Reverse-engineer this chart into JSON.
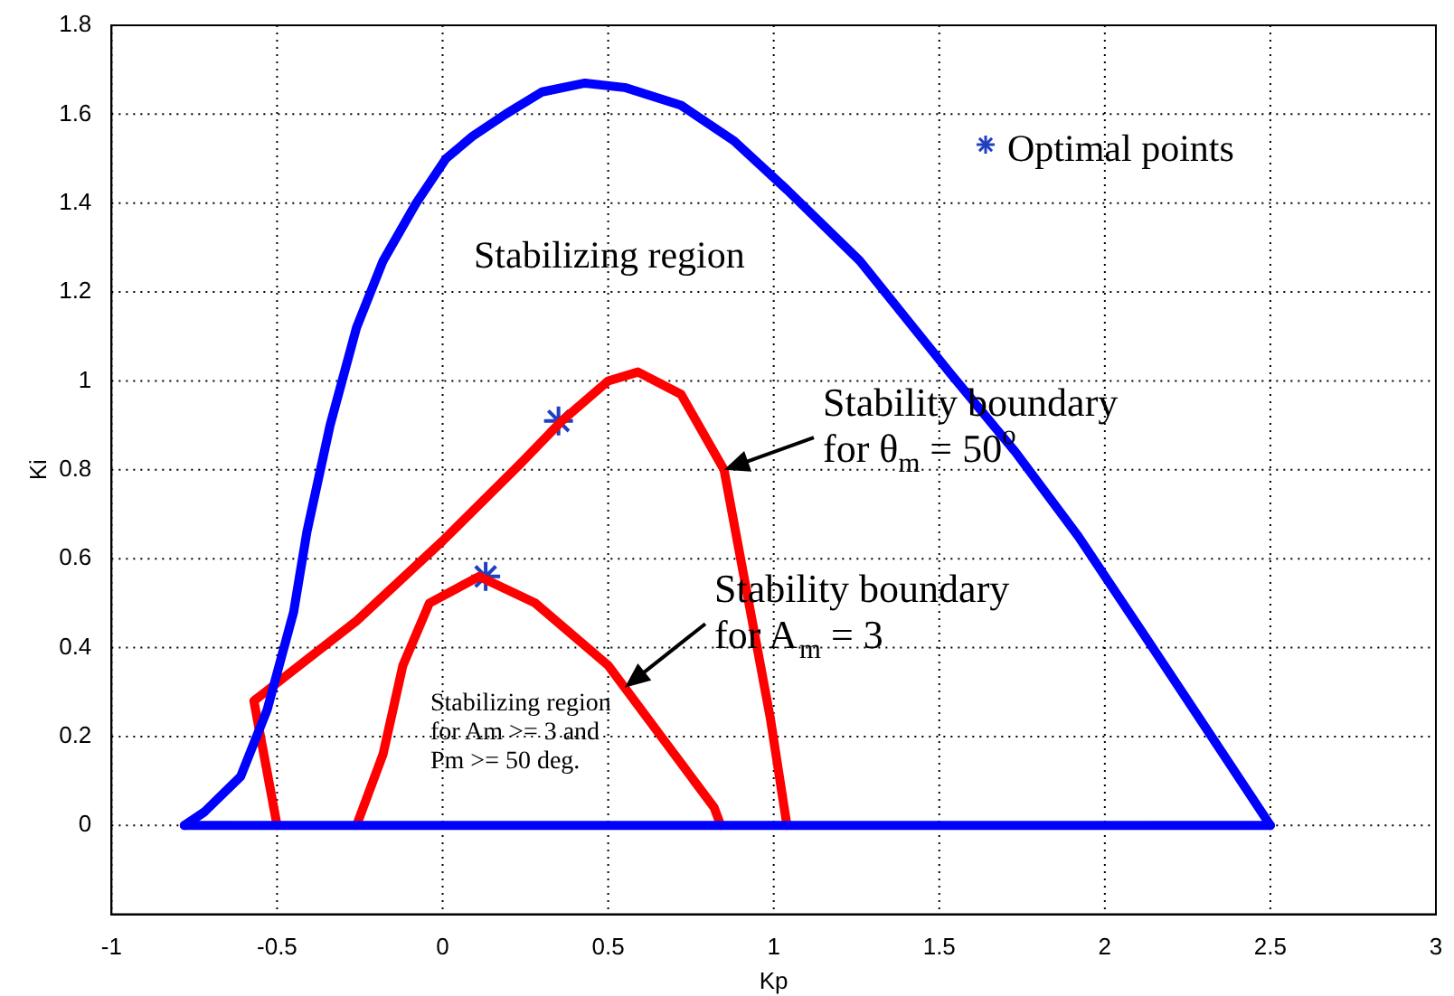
{
  "chart_data": {
    "type": "line",
    "xlabel": "Kp",
    "ylabel": "Ki",
    "xlim": [
      -1,
      3
    ],
    "ylim": [
      -0.2,
      1.8
    ],
    "xticks": [
      -1,
      -0.5,
      0,
      0.5,
      1,
      1.5,
      2,
      2.5,
      3
    ],
    "yticks": [
      0,
      0.2,
      0.4,
      0.6,
      0.8,
      1,
      1.2,
      1.4,
      1.6,
      1.8
    ],
    "grid": true,
    "legend": "top right",
    "line_style": "solid",
    "series": [
      {
        "color": "#0000ff",
        "marker": "none",
        "x": [
          -0.78,
          -0.72,
          -0.61,
          -0.53,
          -0.45,
          -0.41,
          -0.34,
          -0.26,
          -0.18,
          -0.08,
          0.01,
          0.09,
          0.19,
          0.3,
          0.43,
          0.55,
          0.72,
          0.88,
          1.04,
          1.26,
          1.53,
          1.73,
          1.92,
          2.18,
          2.5
        ],
        "values": [
          0,
          0.03,
          0.11,
          0.26,
          0.48,
          0.66,
          0.9,
          1.12,
          1.27,
          1.4,
          1.5,
          1.55,
          1.6,
          1.65,
          1.67,
          1.66,
          1.62,
          1.54,
          1.43,
          1.27,
          1.02,
          0.84,
          0.65,
          0.36,
          0
        ]
      },
      {
        "color": "#0000ff",
        "marker": "none",
        "x": [
          -0.78,
          2.5
        ],
        "values": [
          0,
          0
        ]
      },
      {
        "color": "#ff0000",
        "marker": "none",
        "x": [
          -0.5,
          -0.57,
          -0.26,
          0,
          0.23,
          0.36,
          0.5,
          0.59,
          0.72,
          0.85,
          0.93,
          0.99,
          1.04
        ],
        "values": [
          0,
          0.28,
          0.46,
          0.64,
          0.81,
          0.91,
          1,
          1.02,
          0.97,
          0.8,
          0.48,
          0.24,
          0
        ]
      },
      {
        "color": "#ff0000",
        "marker": "none",
        "x": [
          -0.26,
          -0.18,
          -0.12,
          -0.04,
          0.11,
          0.28,
          0.5,
          0.66,
          0.82,
          0.84
        ],
        "values": [
          0,
          0.16,
          0.36,
          0.5,
          0.56,
          0.5,
          0.36,
          0.2,
          0.04,
          0
        ]
      },
      {
        "type": "scatter",
        "name": "Optimal points",
        "color": "#2040c0",
        "marker": "cross",
        "x": [
          0.35,
          0.13
        ],
        "values": [
          0.91,
          0.56
        ]
      }
    ],
    "annotations": [
      "Stabilizing region",
      {
        "text": "Stability boundary\nfor θ$_{m}$ = 50$^{o}$",
        "x": 0.85,
        "y": 0.8
      },
      {
        "text": "Stability boundary\nfor A$_{m}$ = 3",
        "x": 0.55,
        "y": 0.31
      },
      "Stabilizing region\nfor Am >= 3 and\nPm >= 50 deg."
    ]
  }
}
